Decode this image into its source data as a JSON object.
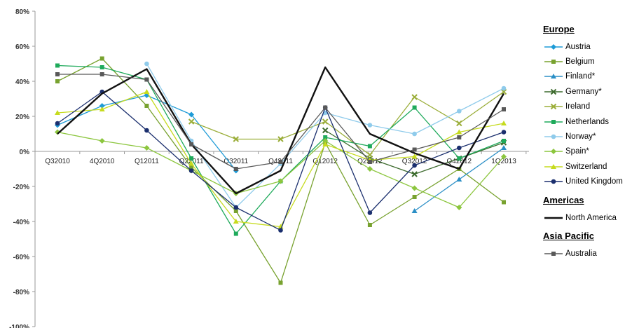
{
  "chart_data": {
    "type": "line",
    "title": "",
    "xlabel": "",
    "ylabel": "",
    "ylim": [
      -100,
      80
    ],
    "yticks": [
      "80%",
      "60%",
      "40%",
      "20%",
      "0%",
      "-20%",
      "-40%",
      "-60%",
      "-80%",
      "-100%"
    ],
    "categories": [
      "Q32010",
      "4Q2010",
      "Q12011",
      "Q22011",
      "Q32011",
      "Q42011",
      "Q12012",
      "Q22012",
      "Q32012",
      "Q42012",
      "1Q2013"
    ],
    "legend_position": "right",
    "groups": [
      {
        "title": "Europe",
        "series": [
          {
            "name": "Austria",
            "color": "#1E9BD7",
            "marker": "diamond",
            "values": [
              15,
              26,
              32,
              21,
              -11,
              null,
              null,
              null,
              null,
              null,
              null
            ]
          },
          {
            "name": "Belgium",
            "color": "#78A22F",
            "marker": "square",
            "values": [
              40,
              53,
              26,
              -9,
              -34,
              -75,
              5,
              -42,
              -26,
              -10,
              -29
            ]
          },
          {
            "name": "Finland*",
            "color": "#2B8FC6",
            "marker": "triangle",
            "values": [
              null,
              null,
              null,
              null,
              null,
              null,
              null,
              null,
              -34,
              -16,
              2
            ]
          },
          {
            "name": "Germany*",
            "color": "#3D6B2E",
            "marker": "x",
            "values": [
              null,
              null,
              null,
              null,
              null,
              null,
              12,
              -4,
              -13,
              -4,
              5
            ]
          },
          {
            "name": "Ireland",
            "color": "#9BAE3A",
            "marker": "x",
            "values": [
              null,
              null,
              null,
              17,
              7,
              7,
              17,
              -2,
              31,
              16,
              34
            ]
          },
          {
            "name": "Netherlands",
            "color": "#1FAA5B",
            "marker": "square",
            "values": [
              49,
              48,
              41,
              -4,
              -47,
              -17,
              8,
              3,
              25,
              -4,
              6
            ]
          },
          {
            "name": "Norway*",
            "color": "#8FCBEB",
            "marker": "circle",
            "values": [
              null,
              null,
              50,
              6,
              -32,
              -7,
              22,
              15,
              10,
              23,
              36
            ]
          },
          {
            "name": "Spain*",
            "color": "#8CC63E",
            "marker": "diamond",
            "values": [
              11,
              6,
              2,
              -11,
              -24,
              -17,
              6,
              -10,
              -21,
              -32,
              -3
            ]
          },
          {
            "name": "Switzerland",
            "color": "#C6DB1E",
            "marker": "triangle",
            "values": [
              22,
              24,
              34,
              -7,
              -40,
              -43,
              4,
              -5,
              -3,
              11,
              16
            ]
          }
        ]
      },
      {
        "title": "",
        "series": [
          {
            "name": "United Kingdom",
            "color": "#1B2F6E",
            "marker": "circle",
            "values": [
              16,
              34,
              12,
              -11,
              -32,
              -45,
              25,
              -35,
              -8,
              2,
              11
            ]
          }
        ]
      },
      {
        "title": "Americas",
        "series": [
          {
            "name": "North America",
            "color": "#111111",
            "marker": "none",
            "values": [
              10,
              33,
              47,
              4,
              -24,
              -11,
              48,
              10,
              -1,
              -10,
              33
            ]
          }
        ]
      },
      {
        "title": "Asia Pacific",
        "series": [
          {
            "name": "Australia",
            "color": "#595959",
            "marker": "square",
            "values": [
              44,
              44,
              41,
              4,
              -10,
              -6,
              25,
              -6,
              1,
              8,
              24
            ]
          }
        ]
      }
    ]
  }
}
